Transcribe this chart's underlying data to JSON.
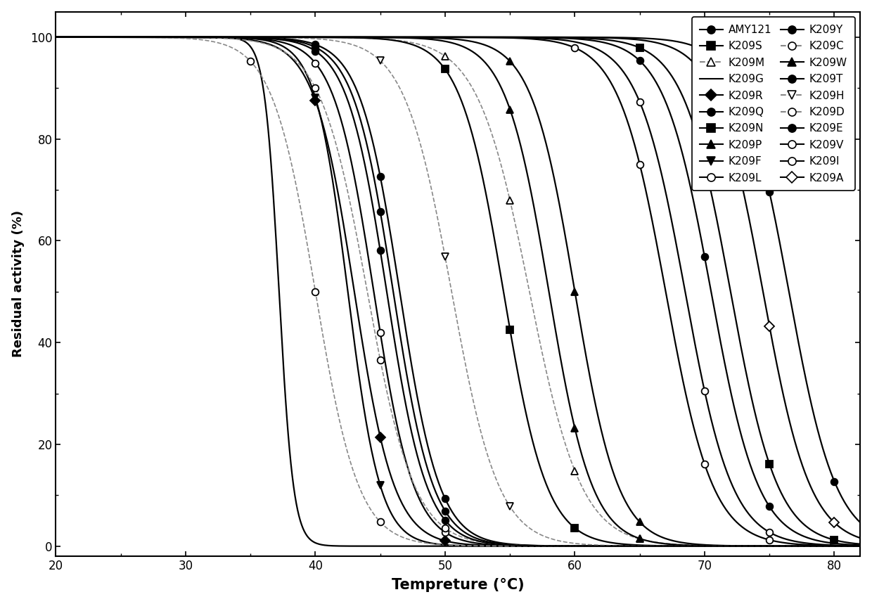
{
  "xlabel": "Tempreture (°C)",
  "ylabel": "Residual activity (%)",
  "xlim": [
    20,
    82
  ],
  "ylim": [
    -2,
    105
  ],
  "xticks": [
    20,
    30,
    40,
    50,
    60,
    70,
    80
  ],
  "yticks": [
    0,
    20,
    40,
    60,
    80,
    100
  ],
  "series": [
    {
      "name": "AMY121",
      "t50": 76.5,
      "k": 0.55,
      "marker": "o",
      "filled": true,
      "linestyle": "-",
      "gray": false
    },
    {
      "name": "K209S",
      "t50": 72.0,
      "k": 0.55,
      "marker": "s",
      "filled": true,
      "linestyle": "-",
      "gray": false
    },
    {
      "name": "K209M",
      "t50": 56.5,
      "k": 0.5,
      "marker": "^",
      "filled": false,
      "linestyle": "--",
      "gray": true
    },
    {
      "name": "K209G",
      "t50": 37.2,
      "k": 1.8,
      "marker": null,
      "filled": false,
      "linestyle": "-",
      "gray": false
    },
    {
      "name": "K209R",
      "t50": 43.0,
      "k": 0.65,
      "marker": "D",
      "filled": true,
      "linestyle": "-",
      "gray": false
    },
    {
      "name": "K209Q",
      "t50": 46.5,
      "k": 0.65,
      "marker": "o",
      "filled": true,
      "linestyle": "-",
      "gray": false
    },
    {
      "name": "K209N",
      "t50": 54.5,
      "k": 0.6,
      "marker": "s",
      "filled": true,
      "linestyle": "-",
      "gray": false
    },
    {
      "name": "K209P",
      "t50": 60.0,
      "k": 0.6,
      "marker": "^",
      "filled": true,
      "linestyle": "-",
      "gray": false
    },
    {
      "name": "K209F",
      "t50": 42.5,
      "k": 0.8,
      "marker": "v",
      "filled": true,
      "linestyle": "-",
      "gray": false
    },
    {
      "name": "K209L",
      "t50": 44.5,
      "k": 0.65,
      "marker": "o",
      "filled": false,
      "linestyle": "-",
      "gray": false
    },
    {
      "name": "K209Y",
      "t50": 46.0,
      "k": 0.65,
      "marker": "o",
      "filled": true,
      "linestyle": "-",
      "gray": false
    },
    {
      "name": "K209C",
      "t50": 40.0,
      "k": 0.6,
      "marker": "o",
      "filled": false,
      "linestyle": "--",
      "gray": true
    },
    {
      "name": "K209W",
      "t50": 58.0,
      "k": 0.6,
      "marker": "^",
      "filled": true,
      "linestyle": "-",
      "gray": false
    },
    {
      "name": "K209T",
      "t50": 70.5,
      "k": 0.55,
      "marker": "o",
      "filled": true,
      "linestyle": "-",
      "gray": false
    },
    {
      "name": "K209H",
      "t50": 50.5,
      "k": 0.55,
      "marker": "v",
      "filled": false,
      "linestyle": "--",
      "gray": true
    },
    {
      "name": "K209D",
      "t50": 44.0,
      "k": 0.55,
      "marker": "o",
      "filled": false,
      "linestyle": "--",
      "gray": true
    },
    {
      "name": "K209E",
      "t50": 45.5,
      "k": 0.65,
      "marker": "o",
      "filled": true,
      "linestyle": "-",
      "gray": false
    },
    {
      "name": "K209V",
      "t50": 67.0,
      "k": 0.55,
      "marker": "o",
      "filled": false,
      "linestyle": "-",
      "gray": false
    },
    {
      "name": "K209I",
      "t50": 68.5,
      "k": 0.55,
      "marker": "o",
      "filled": false,
      "linestyle": "-",
      "gray": false
    },
    {
      "name": "K209A",
      "t50": 74.5,
      "k": 0.55,
      "marker": "D",
      "filled": false,
      "linestyle": "-",
      "gray": false
    }
  ],
  "legend_left": [
    {
      "name": "AMY121",
      "marker": "o",
      "filled": true,
      "linestyle": "-",
      "gray": false
    },
    {
      "name": "K209S",
      "marker": "s",
      "filled": true,
      "linestyle": "-",
      "gray": false
    },
    {
      "name": "K209M",
      "marker": "^",
      "filled": false,
      "linestyle": "--",
      "gray": true
    },
    {
      "name": "K209G",
      "marker": null,
      "filled": false,
      "linestyle": "-",
      "gray": false
    },
    {
      "name": "K209R",
      "marker": "D",
      "filled": true,
      "linestyle": "-",
      "gray": false
    },
    {
      "name": "K209Q",
      "marker": "o",
      "filled": true,
      "linestyle": "-",
      "gray": false
    },
    {
      "name": "K209N",
      "marker": "s",
      "filled": true,
      "linestyle": "-",
      "gray": false
    },
    {
      "name": "K209P",
      "marker": "^",
      "filled": true,
      "linestyle": "-",
      "gray": false
    },
    {
      "name": "K209F",
      "marker": "v",
      "filled": true,
      "linestyle": "-",
      "gray": false
    },
    {
      "name": "K209L",
      "marker": "o",
      "filled": false,
      "linestyle": "-",
      "gray": false
    }
  ],
  "legend_right": [
    {
      "name": "K209Y",
      "marker": "o",
      "filled": true,
      "linestyle": "-",
      "gray": false
    },
    {
      "name": "K209C",
      "marker": "o",
      "filled": false,
      "linestyle": "--",
      "gray": true
    },
    {
      "name": "K209W",
      "marker": "^",
      "filled": true,
      "linestyle": "-",
      "gray": false
    },
    {
      "name": "K209T",
      "marker": "o",
      "filled": true,
      "linestyle": "-",
      "gray": false
    },
    {
      "name": "K209H",
      "marker": "v",
      "filled": false,
      "linestyle": "--",
      "gray": true
    },
    {
      "name": "K209D",
      "marker": "o",
      "filled": false,
      "linestyle": "--",
      "gray": true
    },
    {
      "name": "K209E",
      "marker": "o",
      "filled": true,
      "linestyle": "-",
      "gray": false
    },
    {
      "name": "K209V",
      "marker": "o",
      "filled": false,
      "linestyle": "-",
      "gray": false
    },
    {
      "name": "K209I",
      "marker": "o",
      "filled": false,
      "linestyle": "-",
      "gray": false
    },
    {
      "name": "K209A",
      "marker": "D",
      "filled": false,
      "linestyle": "-",
      "gray": false
    }
  ],
  "figsize": [
    12.4,
    8.59
  ],
  "dpi": 100
}
